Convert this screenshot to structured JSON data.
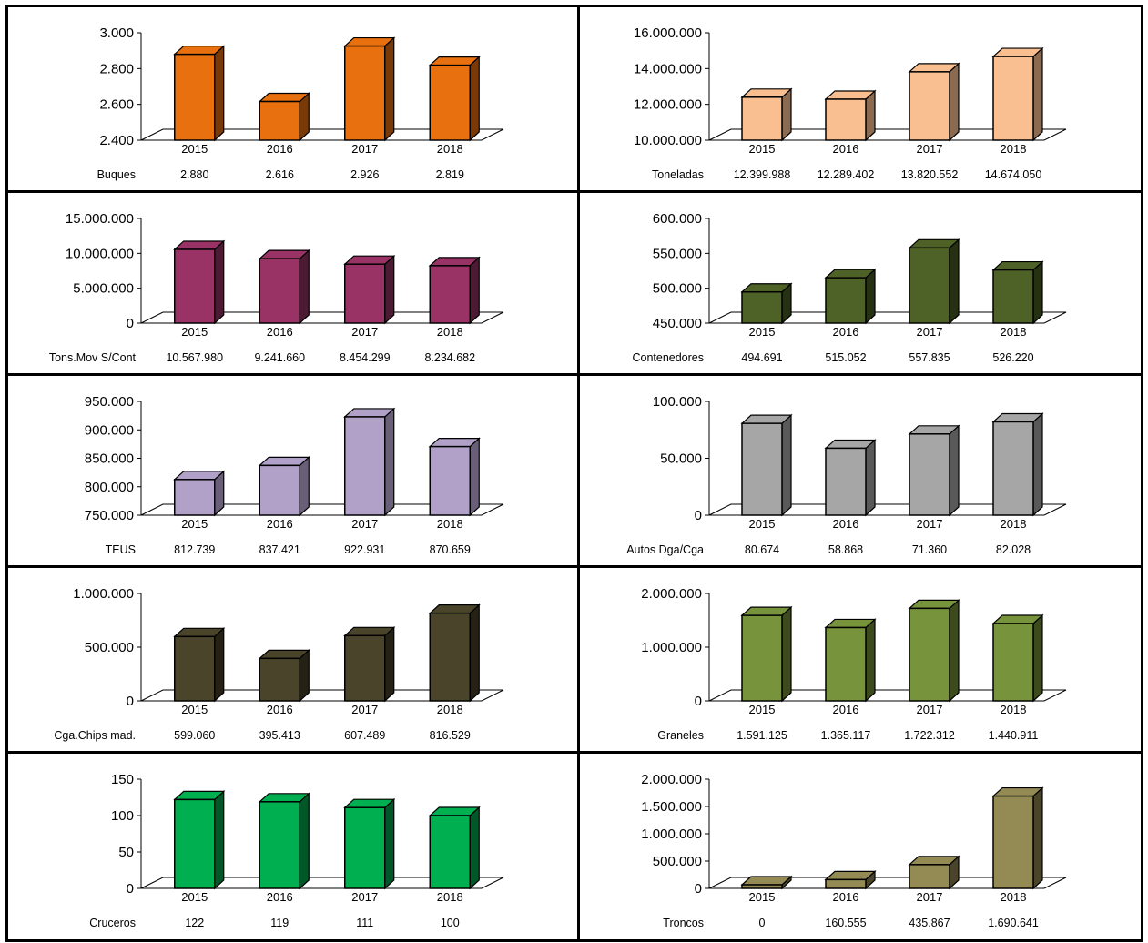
{
  "chart_data": [
    {
      "type": "bar",
      "label": "Buques",
      "categories": [
        "2015",
        "2016",
        "2017",
        "2018"
      ],
      "values": [
        2880,
        2616,
        2926,
        2819
      ],
      "value_labels": [
        "2.880",
        "2.616",
        "2.926",
        "2.819"
      ],
      "ylim": [
        2400,
        3000
      ],
      "yticks": [
        "2.400",
        "2.600",
        "2.800",
        "3.000"
      ],
      "color": "#E8700F",
      "side_color": "#7A3A08"
    },
    {
      "type": "bar",
      "label": "Toneladas",
      "categories": [
        "2015",
        "2016",
        "2017",
        "2018"
      ],
      "values": [
        12399988,
        12289402,
        13820552,
        14674050
      ],
      "value_labels": [
        "12.399.988",
        "12.289.402",
        "13.820.552",
        "14.674.050"
      ],
      "ylim": [
        10000000,
        16000000
      ],
      "yticks": [
        "10.000.000",
        "12.000.000",
        "14.000.000",
        "16.000.000"
      ],
      "color": "#F9BF90",
      "side_color": "#8A6A50"
    },
    {
      "type": "bar",
      "label": "Tons.Mov S/Cont",
      "categories": [
        "2015",
        "2016",
        "2017",
        "2018"
      ],
      "values": [
        10567980,
        9241660,
        8454299,
        8234682
      ],
      "value_labels": [
        "10.567.980",
        "9.241.660",
        "8.454.299",
        "8.234.682"
      ],
      "ylim": [
        0,
        15000000
      ],
      "yticks": [
        "0",
        "5.000.000",
        "10.000.000",
        "15.000.000"
      ],
      "color": "#993366",
      "side_color": "#4D1A33"
    },
    {
      "type": "bar",
      "label": "Contenedores",
      "categories": [
        "2015",
        "2016",
        "2017",
        "2018"
      ],
      "values": [
        494691,
        515052,
        557835,
        526220
      ],
      "value_labels": [
        "494.691",
        "515.052",
        "557.835",
        "526.220"
      ],
      "ylim": [
        450000,
        600000
      ],
      "yticks": [
        "450.000",
        "500.000",
        "550.000",
        "600.000"
      ],
      "color": "#4E6228",
      "side_color": "#263114"
    },
    {
      "type": "bar",
      "label": "TEUS",
      "categories": [
        "2015",
        "2016",
        "2017",
        "2018"
      ],
      "values": [
        812739,
        837421,
        922931,
        870659
      ],
      "value_labels": [
        "812.739",
        "837.421",
        "922.931",
        "870.659"
      ],
      "ylim": [
        750000,
        950000
      ],
      "yticks": [
        "750.000",
        "800.000",
        "850.000",
        "900.000",
        "950.000"
      ],
      "color": "#B1A0C7",
      "side_color": "#6A5F78"
    },
    {
      "type": "bar",
      "label": "Autos Dga/Cga",
      "categories": [
        "2015",
        "2016",
        "2017",
        "2018"
      ],
      "values": [
        80674,
        58868,
        71360,
        82028
      ],
      "value_labels": [
        "80.674",
        "58.868",
        "71.360",
        "82.028"
      ],
      "ylim": [
        0,
        100000
      ],
      "yticks": [
        "0",
        "50.000",
        "100.000"
      ],
      "color": "#A6A6A6",
      "side_color": "#595959"
    },
    {
      "type": "bar",
      "label": "Cga.Chips mad.",
      "categories": [
        "2015",
        "2016",
        "2017",
        "2018"
      ],
      "values": [
        599060,
        395413,
        607489,
        816529
      ],
      "value_labels": [
        "599.060",
        "395.413",
        "607.489",
        "816.529"
      ],
      "ylim": [
        0,
        1000000
      ],
      "yticks": [
        "0",
        "500.000",
        "1.000.000"
      ],
      "color": "#4A452A",
      "side_color": "#252215"
    },
    {
      "type": "bar",
      "label": "Graneles",
      "categories": [
        "2015",
        "2016",
        "2017",
        "2018"
      ],
      "values": [
        1591125,
        1365117,
        1722312,
        1440911
      ],
      "value_labels": [
        "1.591.125",
        "1.365.117",
        "1.722.312",
        "1.440.911"
      ],
      "ylim": [
        0,
        2000000
      ],
      "yticks": [
        "0",
        "1.000.000",
        "2.000.000"
      ],
      "color": "#77933C",
      "side_color": "#3C4A1E"
    },
    {
      "type": "bar",
      "label": "Cruceros",
      "categories": [
        "2015",
        "2016",
        "2017",
        "2018"
      ],
      "values": [
        122,
        119,
        111,
        100
      ],
      "value_labels": [
        "122",
        "119",
        "111",
        "100"
      ],
      "ylim": [
        0,
        150
      ],
      "yticks": [
        "0",
        "50",
        "100",
        "150"
      ],
      "color": "#00B050",
      "side_color": "#005828"
    },
    {
      "type": "bar",
      "label": "Troncos",
      "categories": [
        "2015",
        "2016",
        "2017",
        "2018"
      ],
      "values": [
        0,
        160555,
        435867,
        1690641
      ],
      "value_labels": [
        "0",
        "160.555",
        "435.867",
        "1.690.641"
      ],
      "ylim": [
        0,
        2000000
      ],
      "yticks": [
        "0",
        "500.000",
        "1.000.000",
        "1.500.000",
        "2.000.000"
      ],
      "color": "#948A54",
      "side_color": "#4A452A"
    }
  ]
}
